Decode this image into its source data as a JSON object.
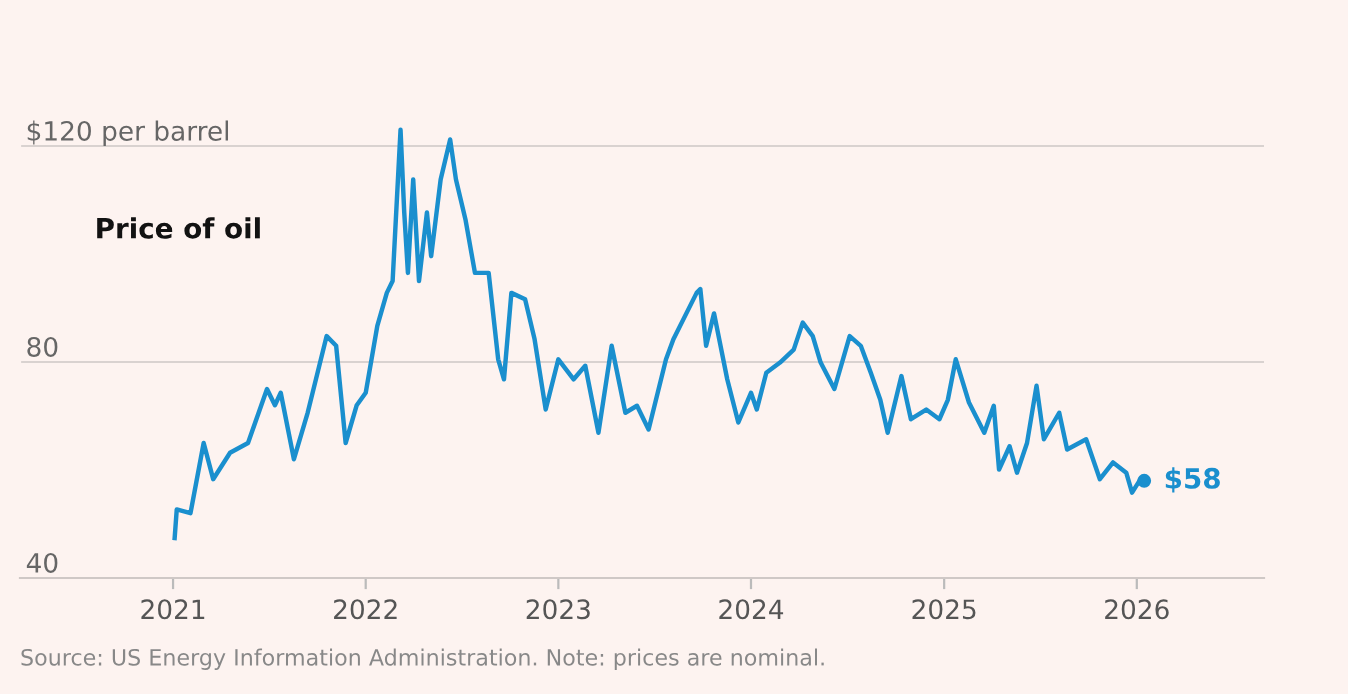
{
  "chart_data": {
    "type": "line",
    "annotations": [
      {
        "text": "Price of oil"
      },
      "Source: US Energy Information Administration. Note: prices are nominal."
    ],
    "x": [
      "2021-01-04",
      "2021-01-08",
      "2021-02-03",
      "2021-02-28",
      "2021-03-18",
      "2021-04-19",
      "2021-05-23",
      "2021-06-28",
      "2021-07-13",
      "2021-07-24",
      "2021-08-18",
      "2021-09-13",
      "2021-10-19",
      "2021-11-06",
      "2021-11-24",
      "2021-12-15",
      "2022-01-01",
      "2022-01-23",
      "2022-02-10",
      "2022-02-21",
      "2022-03-08",
      "2022-03-15",
      "2022-03-22",
      "2022-04-01",
      "2022-04-12",
      "2022-04-27",
      "2022-05-05",
      "2022-05-23",
      "2022-06-10",
      "2022-06-21",
      "2022-07-09",
      "2022-07-27",
      "2022-08-22",
      "2022-09-09",
      "2022-09-20",
      "2022-10-04",
      "2022-10-30",
      "2022-11-17",
      "2022-12-08",
      "2023-01-01",
      "2023-01-30",
      "2023-02-21",
      "2023-03-18",
      "2023-04-12",
      "2023-05-08",
      "2023-05-30",
      "2023-06-21",
      "2023-07-24",
      "2023-08-07",
      "2023-09-20",
      "2023-09-27",
      "2023-10-08",
      "2023-10-23",
      "2023-11-17",
      "2023-12-08",
      "2024-01-01",
      "2024-01-12",
      "2024-01-30",
      "2024-02-25",
      "2024-03-22",
      "2024-04-08",
      "2024-04-27",
      "2024-05-12",
      "2024-06-07",
      "2024-07-06",
      "2024-07-27",
      "2024-08-15",
      "2024-09-02",
      "2024-09-16",
      "2024-10-12",
      "2024-10-30",
      "2024-11-28",
      "2024-12-23",
      "2025-01-08",
      "2025-01-23",
      "2025-02-17",
      "2025-03-18",
      "2025-04-05",
      "2025-04-15",
      "2025-05-05",
      "2025-05-19",
      "2025-06-07",
      "2025-06-25",
      "2025-07-09",
      "2025-08-07",
      "2025-08-22",
      "2025-09-27",
      "2025-10-23",
      "2025-11-17",
      "2025-12-12",
      "2025-12-23",
      "2026-01-08",
      "2026-01-15"
    ],
    "series": [
      {
        "color": "#1a8fce",
        "values": [
          47.4,
          52.7,
          52,
          65,
          58.3,
          63.2,
          65,
          75,
          72,
          74.3,
          62,
          70.6,
          84.8,
          83,
          65,
          72,
          74.3,
          86.7,
          92.8,
          95,
          123,
          107.7,
          96.5,
          113.8,
          95,
          107.7,
          99.6,
          113.8,
          121.2,
          113.8,
          106.4,
          96.5,
          96.5,
          80.5,
          76.8,
          92.8,
          91.6,
          84.2,
          71.2,
          80.5,
          76.8,
          79.3,
          66.9,
          83,
          70.6,
          71.9,
          67.5,
          80.5,
          84.2,
          92.8,
          93.5,
          83,
          89,
          76.8,
          68.8,
          74.3,
          71.2,
          78,
          79.9,
          82.3,
          87.3,
          84.8,
          79.9,
          75,
          84.8,
          83,
          78,
          73,
          66.9,
          77.4,
          69.4,
          71.2,
          69.4,
          73,
          80.5,
          72.5,
          66.9,
          71.9,
          60.1,
          64.4,
          59.5,
          65,
          75.6,
          65.7,
          70.6,
          63.8,
          65.7,
          58.3,
          61.4,
          59.5,
          55.8,
          58.3,
          58
        ],
        "value_labels": [
          null,
          null,
          null,
          null,
          null,
          null,
          null,
          null,
          null,
          null,
          null,
          null,
          null,
          null,
          null,
          null,
          null,
          null,
          null,
          null,
          null,
          null,
          null,
          null,
          null,
          null,
          null,
          null,
          null,
          null,
          null,
          null,
          null,
          null,
          null,
          null,
          null,
          null,
          null,
          null,
          null,
          null,
          null,
          null,
          null,
          null,
          null,
          null,
          null,
          null,
          null,
          null,
          null,
          null,
          null,
          null,
          null,
          null,
          null,
          null,
          null,
          null,
          null,
          null,
          null,
          null,
          null,
          null,
          null,
          null,
          null,
          null,
          null,
          null,
          null,
          null,
          null,
          null,
          null,
          null,
          null,
          null,
          null,
          null,
          null,
          null,
          null,
          null,
          null,
          null,
          null,
          null,
          "$58"
        ]
      }
    ],
    "xlim": [
      "2020-03-17",
      "2026-08-30"
    ],
    "xticks": [
      {
        "value": "2021-01-01",
        "label": "2021"
      },
      {
        "value": "2022-01-01",
        "label": "2022"
      },
      {
        "value": "2023-01-01",
        "label": "2023"
      },
      {
        "value": "2024-01-01",
        "label": "2024"
      },
      {
        "value": "2025-01-01",
        "label": "2025"
      },
      {
        "value": "2026-01-01",
        "label": "2026"
      }
    ],
    "ylim": [
      40,
      125
    ],
    "yticks": [
      40,
      80,
      {
        "value": 120,
        "label": "$120 per barrel"
      }
    ],
    "grid": "y",
    "line_style": "solid"
  }
}
